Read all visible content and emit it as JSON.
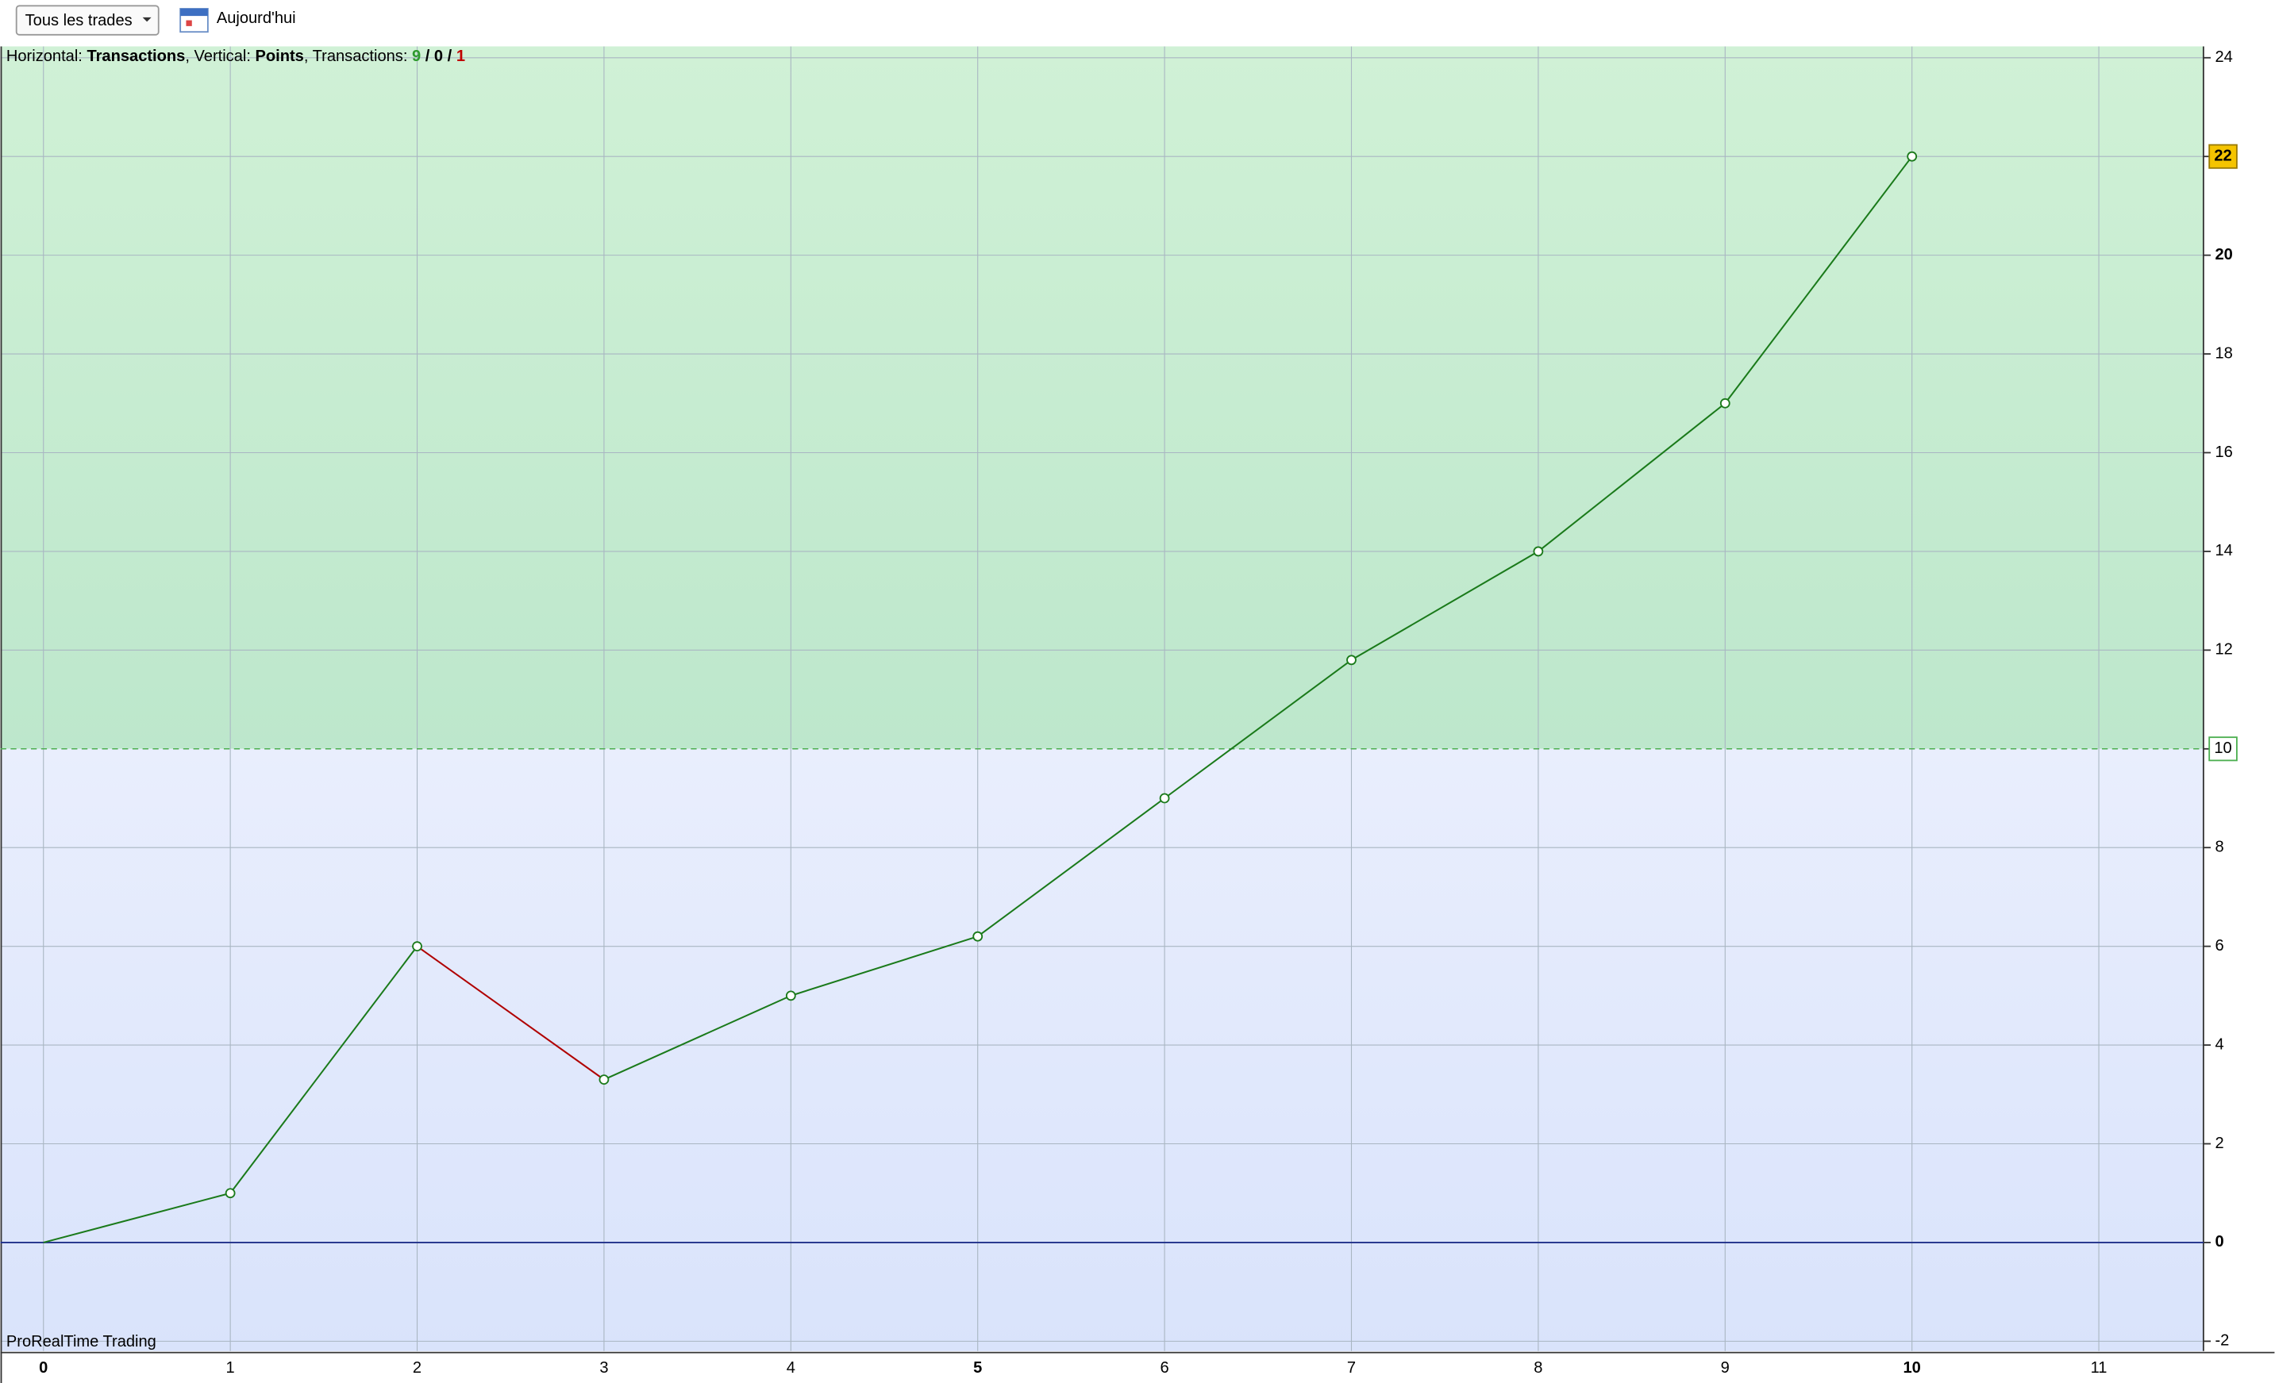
{
  "toolbar": {
    "filter": "Tous les trades",
    "period": "Aujourd'hui"
  },
  "chart_data": {
    "type": "line",
    "info": {
      "horizontal": "Horizontal: ",
      "x_label": "Transactions",
      "vertical": ", Vertical: ",
      "y_label": "Points",
      "transactions": ", Transactions: ",
      "wins": 9,
      "even": 0,
      "losses": 1,
      "separator": " / "
    },
    "x": [
      0,
      1,
      2,
      3,
      4,
      5,
      6,
      7,
      8,
      9,
      10
    ],
    "values": [
      0,
      1,
      6,
      3.3,
      5,
      6.2,
      9,
      11.8,
      14,
      17,
      22
    ],
    "color": "#1a7a1a",
    "loss_color": "#b00000",
    "threshold": 10,
    "xlim": [
      -0.23,
      11.56
    ],
    "ylim": [
      -2.2,
      24.23
    ],
    "xticks": [
      0,
      1,
      2,
      3,
      4,
      5,
      6,
      7,
      8,
      9,
      10,
      11
    ],
    "yticks": [
      -2,
      0,
      2,
      4,
      6,
      8,
      10,
      12,
      14,
      16,
      18,
      20,
      22,
      24
    ],
    "grid": true,
    "watermark": "ProRealTime Trading"
  }
}
